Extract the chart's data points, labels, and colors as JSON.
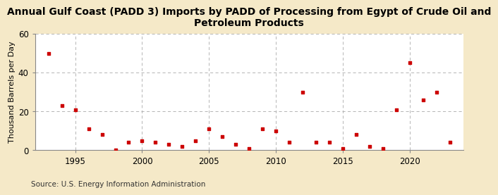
{
  "title": "Annual Gulf Coast (PADD 3) Imports by PADD of Processing from Egypt of Crude Oil and\nPetroleum Products",
  "ylabel": "Thousand Barrels per Day",
  "source": "Source: U.S. Energy Information Administration",
  "background_color": "#f5e9c8",
  "plot_bg_color": "#ffffff",
  "marker_color": "#cc0000",
  "years": [
    1993,
    1994,
    1995,
    1996,
    1997,
    1998,
    1999,
    2000,
    2001,
    2002,
    2003,
    2004,
    2005,
    2006,
    2007,
    2008,
    2009,
    2010,
    2011,
    2012,
    2013,
    2014,
    2015,
    2016,
    2017,
    2018,
    2019,
    2020,
    2021,
    2022,
    2023
  ],
  "values": [
    50,
    23,
    21,
    11,
    8,
    0,
    4,
    5,
    4,
    3,
    2,
    5,
    11,
    7,
    3,
    1,
    11,
    10,
    4,
    30,
    4,
    4,
    1,
    8,
    2,
    1,
    21,
    45,
    26,
    30,
    4
  ],
  "ylim": [
    0,
    60
  ],
  "yticks": [
    0,
    20,
    40,
    60
  ],
  "xlim": [
    1992.0,
    2024.0
  ],
  "xticks": [
    1995,
    2000,
    2005,
    2010,
    2015,
    2020
  ],
  "grid_color": "#aaaaaa",
  "title_fontsize": 10,
  "label_fontsize": 8,
  "tick_fontsize": 8.5,
  "source_fontsize": 7.5
}
